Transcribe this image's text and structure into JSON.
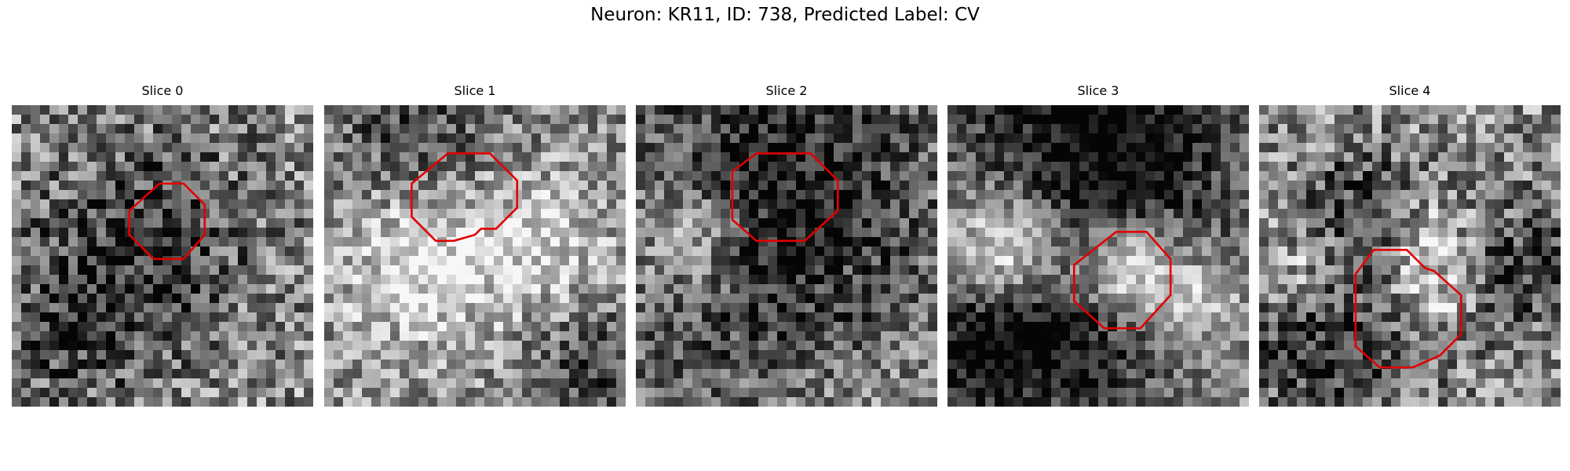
{
  "figure": {
    "title": "Neuron: KR11, ID: 738, Predicted Label: CV"
  },
  "panels": [
    {
      "title": "Slice 0",
      "seed": 11,
      "contrast": 0.35,
      "blobs": [],
      "dark": [
        [
          0.45,
          0.45,
          0.25,
          0.35
        ],
        [
          0.2,
          0.75,
          0.18,
          0.25
        ]
      ],
      "roi": [
        [
          0.49,
          0.26
        ],
        [
          0.57,
          0.26
        ],
        [
          0.64,
          0.33
        ],
        [
          0.64,
          0.43
        ],
        [
          0.57,
          0.51
        ],
        [
          0.47,
          0.51
        ],
        [
          0.39,
          0.43
        ],
        [
          0.39,
          0.35
        ]
      ]
    },
    {
      "title": "Slice 1",
      "seed": 23,
      "contrast": 0.3,
      "blobs": [
        [
          0.35,
          0.5,
          0.2,
          0.4
        ],
        [
          0.75,
          0.45,
          0.15,
          0.25
        ]
      ],
      "dark": [
        [
          0.3,
          0.1,
          0.2,
          0.3
        ],
        [
          0.9,
          0.9,
          0.15,
          0.3
        ]
      ],
      "roi": [
        [
          0.41,
          0.16
        ],
        [
          0.55,
          0.16
        ],
        [
          0.64,
          0.25
        ],
        [
          0.64,
          0.34
        ],
        [
          0.57,
          0.41
        ],
        [
          0.52,
          0.41
        ],
        [
          0.5,
          0.43
        ],
        [
          0.43,
          0.45
        ],
        [
          0.37,
          0.45
        ],
        [
          0.29,
          0.37
        ],
        [
          0.29,
          0.26
        ]
      ]
    },
    {
      "title": "Slice 2",
      "seed": 37,
      "contrast": 0.3,
      "blobs": [
        [
          0.2,
          0.45,
          0.12,
          0.3
        ],
        [
          0.65,
          0.55,
          0.1,
          0.2
        ]
      ],
      "dark": [
        [
          0.5,
          0.1,
          0.35,
          0.4
        ],
        [
          0.6,
          0.55,
          0.2,
          0.35
        ],
        [
          0.15,
          0.82,
          0.2,
          0.2
        ]
      ],
      "roi": [
        [
          0.4,
          0.16
        ],
        [
          0.58,
          0.16
        ],
        [
          0.67,
          0.25
        ],
        [
          0.67,
          0.35
        ],
        [
          0.56,
          0.45
        ],
        [
          0.4,
          0.45
        ],
        [
          0.32,
          0.38
        ],
        [
          0.32,
          0.22
        ]
      ]
    },
    {
      "title": "Slice 3",
      "seed": 53,
      "contrast": 0.25,
      "blobs": [
        [
          0.22,
          0.48,
          0.15,
          0.75
        ],
        [
          0.6,
          0.55,
          0.13,
          0.8
        ],
        [
          0.85,
          0.65,
          0.1,
          0.3
        ]
      ],
      "dark": [
        [
          0.5,
          0.12,
          0.35,
          0.55
        ],
        [
          0.4,
          0.7,
          0.25,
          0.5
        ],
        [
          0.1,
          0.8,
          0.15,
          0.35
        ]
      ],
      "roi": [
        [
          0.56,
          0.42
        ],
        [
          0.66,
          0.42
        ],
        [
          0.74,
          0.51
        ],
        [
          0.74,
          0.63
        ],
        [
          0.64,
          0.74
        ],
        [
          0.52,
          0.74
        ],
        [
          0.42,
          0.65
        ],
        [
          0.42,
          0.53
        ]
      ]
    },
    {
      "title": "Slice 4",
      "seed": 71,
      "contrast": 0.35,
      "blobs": [
        [
          0.55,
          0.6,
          0.12,
          0.35
        ],
        [
          0.15,
          0.55,
          0.1,
          0.3
        ],
        [
          0.58,
          0.42,
          0.08,
          0.3
        ]
      ],
      "dark": [
        [
          0.25,
          0.78,
          0.2,
          0.4
        ],
        [
          0.85,
          0.55,
          0.15,
          0.35
        ],
        [
          0.35,
          0.35,
          0.15,
          0.3
        ]
      ],
      "roi": [
        [
          0.38,
          0.48
        ],
        [
          0.49,
          0.48
        ],
        [
          0.55,
          0.54
        ],
        [
          0.58,
          0.55
        ],
        [
          0.67,
          0.63
        ],
        [
          0.67,
          0.76
        ],
        [
          0.6,
          0.83
        ],
        [
          0.51,
          0.87
        ],
        [
          0.4,
          0.87
        ],
        [
          0.32,
          0.8
        ],
        [
          0.32,
          0.56
        ]
      ]
    }
  ]
}
